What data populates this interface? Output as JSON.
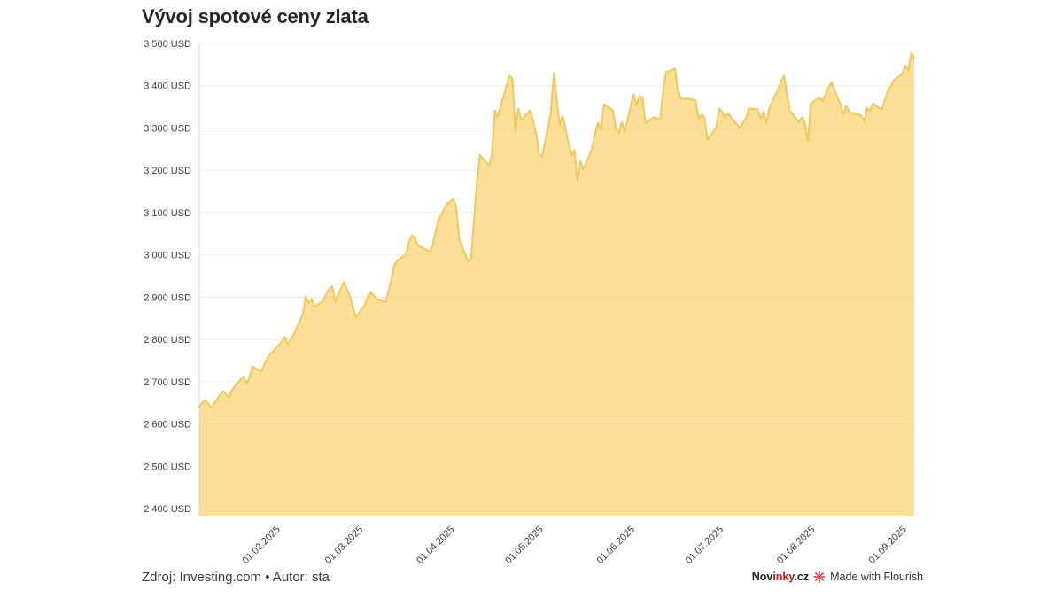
{
  "title": "Vývoj spotové ceny zlata",
  "footer": {
    "source": "Zdroj: Investing.com • Autor: sta"
  },
  "attribution": {
    "novinky_part1": "Nov",
    "novinky_part2": "inky",
    "novinky_part3": ".cz",
    "brand_red": "#c41515",
    "flourish_red": "#d92b2b",
    "flourish_label": "Made with Flourish"
  },
  "chart_data": {
    "type": "area",
    "title": "Vývoj spotové ceny zlata",
    "xlabel": "",
    "ylabel": "",
    "unit": "USD",
    "ylim": [
      2400,
      3500
    ],
    "grid": true,
    "legend": "none",
    "colors": {
      "area_fill": "rgba(250,204,85,0.62)",
      "line": "#f5c75b",
      "grid": "#ececec",
      "axis": "#d9d9d9",
      "tick_text": "#3f3f3f"
    },
    "y_ticks": [
      {
        "value": 3500,
        "label": "3 500 USD"
      },
      {
        "value": 3400,
        "label": "3 400 USD"
      },
      {
        "value": 3300,
        "label": "3 300 USD"
      },
      {
        "value": 3200,
        "label": "3 200 USD"
      },
      {
        "value": 3100,
        "label": "3 100 USD"
      },
      {
        "value": 3000,
        "label": "3 000 USD"
      },
      {
        "value": 2900,
        "label": "2 900 USD"
      },
      {
        "value": 2800,
        "label": "2 800 USD"
      },
      {
        "value": 2700,
        "label": "2 700 USD"
      },
      {
        "value": 2600,
        "label": "2 600 USD"
      },
      {
        "value": 2500,
        "label": "2 500 USD"
      },
      {
        "value": 2400,
        "label": "2 400 USD"
      }
    ],
    "x_ticks": [
      "01.02.2025",
      "01.03.2025",
      "01.04.2025",
      "01.05.2025",
      "01.06.2025",
      "01.07.2025",
      "01.08.2025",
      "01.09.2025"
    ],
    "points": [
      [
        "06.01.2025",
        2641
      ],
      [
        "07.01.2025",
        2650
      ],
      [
        "08.01.2025",
        2656
      ],
      [
        "09.01.2025",
        2648
      ],
      [
        "10.01.2025",
        2638
      ],
      [
        "13.01.2025",
        2668
      ],
      [
        "14.01.2025",
        2678
      ],
      [
        "15.01.2025",
        2670
      ],
      [
        "16.01.2025",
        2662
      ],
      [
        "17.01.2025",
        2680
      ],
      [
        "20.01.2025",
        2706
      ],
      [
        "21.01.2025",
        2712
      ],
      [
        "22.01.2025",
        2696
      ],
      [
        "23.01.2025",
        2710
      ],
      [
        "24.01.2025",
        2736
      ],
      [
        "27.01.2025",
        2724
      ],
      [
        "28.01.2025",
        2740
      ],
      [
        "29.01.2025",
        2756
      ],
      [
        "30.01.2025",
        2766
      ],
      [
        "31.01.2025",
        2772
      ],
      [
        "03.02.2025",
        2796
      ],
      [
        "04.02.2025",
        2806
      ],
      [
        "05.02.2025",
        2788
      ],
      [
        "06.02.2025",
        2800
      ],
      [
        "07.02.2025",
        2812
      ],
      [
        "10.02.2025",
        2858
      ],
      [
        "11.02.2025",
        2902
      ],
      [
        "12.02.2025",
        2886
      ],
      [
        "13.02.2025",
        2896
      ],
      [
        "14.02.2025",
        2878
      ],
      [
        "17.02.2025",
        2892
      ],
      [
        "18.02.2025",
        2908
      ],
      [
        "19.02.2025",
        2920
      ],
      [
        "20.02.2025",
        2926
      ],
      [
        "21.02.2025",
        2890
      ],
      [
        "24.02.2025",
        2936
      ],
      [
        "25.02.2025",
        2918
      ],
      [
        "26.02.2025",
        2902
      ],
      [
        "27.02.2025",
        2876
      ],
      [
        "28.02.2025",
        2852
      ],
      [
        "03.03.2025",
        2882
      ],
      [
        "04.03.2025",
        2902
      ],
      [
        "05.03.2025",
        2912
      ],
      [
        "06.03.2025",
        2904
      ],
      [
        "07.03.2025",
        2896
      ],
      [
        "10.03.2025",
        2888
      ],
      [
        "11.03.2025",
        2912
      ],
      [
        "12.03.2025",
        2942
      ],
      [
        "13.03.2025",
        2976
      ],
      [
        "14.03.2025",
        2986
      ],
      [
        "17.03.2025",
        3002
      ],
      [
        "18.03.2025",
        3032
      ],
      [
        "19.03.2025",
        3046
      ],
      [
        "20.03.2025",
        3040
      ],
      [
        "21.03.2025",
        3022
      ],
      [
        "24.03.2025",
        3012
      ],
      [
        "25.03.2025",
        3006
      ],
      [
        "26.03.2025",
        3022
      ],
      [
        "27.03.2025",
        3056
      ],
      [
        "28.03.2025",
        3082
      ],
      [
        "31.03.2025",
        3122
      ],
      [
        "01.04.2025",
        3126
      ],
      [
        "02.04.2025",
        3132
      ],
      [
        "03.04.2025",
        3112
      ],
      [
        "04.04.2025",
        3036
      ],
      [
        "07.04.2025",
        2984
      ],
      [
        "08.04.2025",
        2992
      ],
      [
        "09.04.2025",
        3082
      ],
      [
        "10.04.2025",
        3176
      ],
      [
        "11.04.2025",
        3236
      ],
      [
        "14.04.2025",
        3212
      ],
      [
        "15.04.2025",
        3232
      ],
      [
        "16.04.2025",
        3342
      ],
      [
        "17.04.2025",
        3326
      ],
      [
        "21.04.2025",
        3424
      ],
      [
        "22.04.2025",
        3416
      ],
      [
        "23.04.2025",
        3292
      ],
      [
        "24.04.2025",
        3346
      ],
      [
        "25.04.2025",
        3318
      ],
      [
        "28.04.2025",
        3342
      ],
      [
        "29.04.2025",
        3316
      ],
      [
        "30.04.2025",
        3288
      ],
      [
        "01.05.2025",
        3238
      ],
      [
        "02.05.2025",
        3232
      ],
      [
        "05.05.2025",
        3336
      ],
      [
        "06.05.2025",
        3430
      ],
      [
        "07.05.2025",
        3368
      ],
      [
        "08.05.2025",
        3306
      ],
      [
        "09.05.2025",
        3328
      ],
      [
        "12.05.2025",
        3234
      ],
      [
        "13.05.2025",
        3248
      ],
      [
        "14.05.2025",
        3176
      ],
      [
        "15.05.2025",
        3222
      ],
      [
        "16.05.2025",
        3202
      ],
      [
        "19.05.2025",
        3252
      ],
      [
        "20.05.2025",
        3290
      ],
      [
        "21.05.2025",
        3312
      ],
      [
        "22.05.2025",
        3296
      ],
      [
        "23.05.2025",
        3356
      ],
      [
        "26.05.2025",
        3342
      ],
      [
        "27.05.2025",
        3300
      ],
      [
        "28.05.2025",
        3288
      ],
      [
        "29.05.2025",
        3314
      ],
      [
        "30.05.2025",
        3292
      ],
      [
        "02.06.2025",
        3380
      ],
      [
        "03.06.2025",
        3354
      ],
      [
        "04.06.2025",
        3376
      ],
      [
        "05.06.2025",
        3372
      ],
      [
        "06.06.2025",
        3312
      ],
      [
        "09.06.2025",
        3326
      ],
      [
        "10.06.2025",
        3322
      ],
      [
        "11.06.2025",
        3320
      ],
      [
        "12.06.2025",
        3386
      ],
      [
        "13.06.2025",
        3432
      ],
      [
        "16.06.2025",
        3440
      ],
      [
        "17.06.2025",
        3390
      ],
      [
        "18.06.2025",
        3370
      ],
      [
        "19.06.2025",
        3368
      ],
      [
        "20.06.2025",
        3370
      ],
      [
        "23.06.2025",
        3366
      ],
      [
        "24.06.2025",
        3322
      ],
      [
        "25.06.2025",
        3332
      ],
      [
        "26.06.2025",
        3326
      ],
      [
        "27.06.2025",
        3272
      ],
      [
        "30.06.2025",
        3302
      ],
      [
        "01.07.2025",
        3346
      ],
      [
        "02.07.2025",
        3338
      ],
      [
        "03.07.2025",
        3326
      ],
      [
        "04.07.2025",
        3334
      ],
      [
        "07.07.2025",
        3308
      ],
      [
        "08.07.2025",
        3300
      ],
      [
        "09.07.2025",
        3312
      ],
      [
        "10.07.2025",
        3322
      ],
      [
        "11.07.2025",
        3346
      ],
      [
        "14.07.2025",
        3344
      ],
      [
        "15.07.2025",
        3322
      ],
      [
        "16.07.2025",
        3338
      ],
      [
        "17.07.2025",
        3312
      ],
      [
        "18.07.2025",
        3348
      ],
      [
        "21.07.2025",
        3392
      ],
      [
        "22.07.2025",
        3412
      ],
      [
        "23.07.2025",
        3424
      ],
      [
        "24.07.2025",
        3374
      ],
      [
        "25.07.2025",
        3340
      ],
      [
        "28.07.2025",
        3314
      ],
      [
        "29.07.2025",
        3326
      ],
      [
        "30.07.2025",
        3312
      ],
      [
        "31.07.2025",
        3268
      ],
      [
        "01.08.2025",
        3358
      ],
      [
        "04.08.2025",
        3372
      ],
      [
        "05.08.2025",
        3364
      ],
      [
        "06.08.2025",
        3380
      ],
      [
        "07.08.2025",
        3396
      ],
      [
        "08.08.2025",
        3408
      ],
      [
        "11.08.2025",
        3356
      ],
      [
        "12.08.2025",
        3332
      ],
      [
        "13.08.2025",
        3352
      ],
      [
        "14.08.2025",
        3338
      ],
      [
        "15.08.2025",
        3336
      ],
      [
        "18.08.2025",
        3330
      ],
      [
        "19.08.2025",
        3316
      ],
      [
        "20.08.2025",
        3348
      ],
      [
        "21.08.2025",
        3340
      ],
      [
        "22.08.2025",
        3358
      ],
      [
        "25.08.2025",
        3344
      ],
      [
        "26.08.2025",
        3366
      ],
      [
        "27.08.2025",
        3386
      ],
      [
        "28.08.2025",
        3398
      ],
      [
        "29.08.2025",
        3412
      ],
      [
        "01.09.2025",
        3428
      ],
      [
        "02.09.2025",
        3448
      ],
      [
        "03.09.2025",
        3436
      ],
      [
        "04.09.2025",
        3478
      ],
      [
        "05.09.2025",
        3466
      ]
    ]
  }
}
